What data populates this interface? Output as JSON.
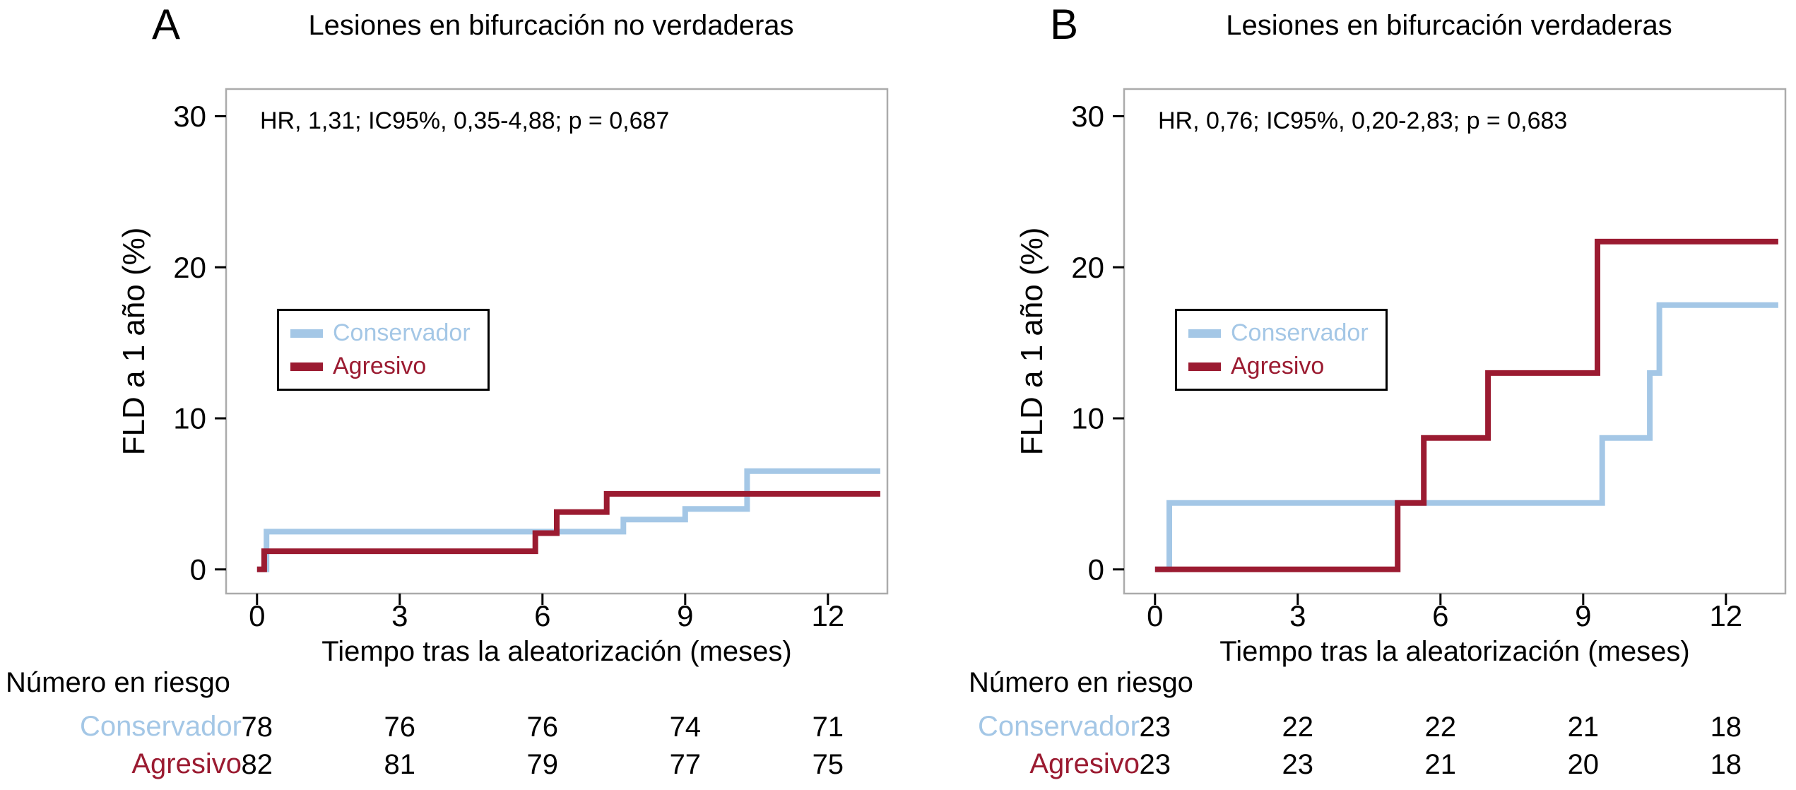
{
  "colors": {
    "conservador": "#a4c7e6",
    "agresivo": "#9b1b31",
    "frame": "#ababab",
    "tick": "#000000"
  },
  "chart_data": [
    {
      "type": "line",
      "subtype": "step-cumulative-incidence",
      "panel_letter": "A",
      "title": "Lesiones en bifurcación no verdaderas",
      "annotation": "HR, 1,31; IC95%, 0,35-4,88; p = 0,687",
      "xlabel": "Tiempo tras la aleatorización (meses)",
      "ylabel": "FLD a 1 año (%)",
      "xlim": [
        -0.65,
        13.25
      ],
      "ylim": [
        -1.6,
        31.8
      ],
      "xticks": [
        0,
        3,
        6,
        9,
        12
      ],
      "yticks": [
        0,
        10,
        20,
        30
      ],
      "x_end": 13.1,
      "legend_position": "inside-left",
      "series": [
        {
          "name": "Conservador",
          "color_key": "conservador",
          "points": [
            [
              0,
              0
            ],
            [
              0.2,
              2.5
            ],
            [
              7.7,
              3.3
            ],
            [
              9.0,
              4.0
            ],
            [
              10.3,
              6.5
            ]
          ]
        },
        {
          "name": "Agresivo",
          "color_key": "agresivo",
          "points": [
            [
              0,
              0
            ],
            [
              0.15,
              1.2
            ],
            [
              5.85,
              2.4
            ],
            [
              6.3,
              3.8
            ],
            [
              7.35,
              5.0
            ]
          ]
        }
      ],
      "risk_table": {
        "title": "Número en riesgo",
        "times": [
          0,
          3,
          6,
          9,
          12
        ],
        "rows": [
          {
            "label": "Conservador",
            "color_key": "conservador",
            "counts": [
              78,
              76,
              76,
              74,
              71
            ]
          },
          {
            "label": "Agresivo",
            "color_key": "agresivo",
            "counts": [
              82,
              81,
              79,
              77,
              75
            ]
          }
        ]
      }
    },
    {
      "type": "line",
      "subtype": "step-cumulative-incidence",
      "panel_letter": "B",
      "title": "Lesiones en bifurcación verdaderas",
      "annotation": "HR, 0,76; IC95%, 0,20-2,83; p = 0,683",
      "xlabel": "Tiempo tras la aleatorización (meses)",
      "ylabel": "FLD a 1 año (%)",
      "xlim": [
        -0.65,
        13.25
      ],
      "ylim": [
        -1.6,
        31.8
      ],
      "xticks": [
        0,
        3,
        6,
        9,
        12
      ],
      "yticks": [
        0,
        10,
        20,
        30
      ],
      "x_end": 13.1,
      "legend_position": "inside-left",
      "series": [
        {
          "name": "Conservador",
          "color_key": "conservador",
          "points": [
            [
              0,
              0
            ],
            [
              0.3,
              4.4
            ],
            [
              9.4,
              8.7
            ],
            [
              10.4,
              13.0
            ],
            [
              10.6,
              17.5
            ]
          ]
        },
        {
          "name": "Agresivo",
          "color_key": "agresivo",
          "points": [
            [
              0,
              0
            ],
            [
              5.1,
              4.4
            ],
            [
              5.65,
              8.7
            ],
            [
              7.0,
              13.0
            ],
            [
              9.3,
              21.7
            ]
          ]
        }
      ],
      "risk_table": {
        "title": "Número en riesgo",
        "times": [
          0,
          3,
          6,
          9,
          12
        ],
        "rows": [
          {
            "label": "Conservador",
            "color_key": "conservador",
            "counts": [
              23,
              22,
              22,
              21,
              18
            ]
          },
          {
            "label": "Agresivo",
            "color_key": "agresivo",
            "counts": [
              23,
              23,
              21,
              20,
              18
            ]
          }
        ]
      }
    }
  ]
}
